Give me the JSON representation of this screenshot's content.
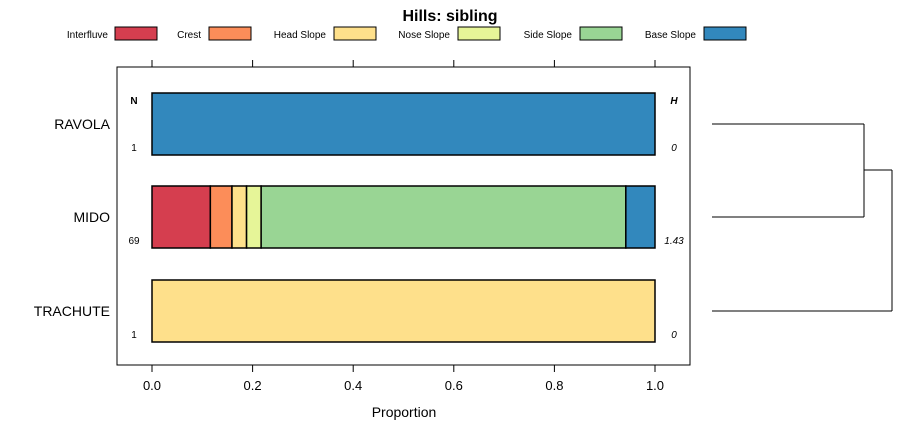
{
  "chart_data": {
    "type": "bar",
    "stacked": true,
    "orientation": "horizontal",
    "title": "Hills: sibling",
    "xlabel": "Proportion",
    "ylabel": "",
    "xlim": [
      0,
      1
    ],
    "xticks": [
      "0.0",
      "0.2",
      "0.4",
      "0.6",
      "0.8",
      "1.0"
    ],
    "xtick_values": [
      0,
      0.2,
      0.4,
      0.6,
      0.8,
      1.0
    ],
    "legend_position": "top",
    "n_header": "N",
    "h_header": "H",
    "categories": [
      "RAVOLA",
      "MIDO",
      "TRACHUTE"
    ],
    "n_values": [
      "1",
      "69",
      "1"
    ],
    "h_values": [
      "0",
      "1.43",
      "0"
    ],
    "series": [
      {
        "name": "Interfluve",
        "color": "#D53E4F",
        "values": [
          0,
          0.116,
          0
        ]
      },
      {
        "name": "Crest",
        "color": "#FC8D59",
        "values": [
          0,
          0.043,
          0
        ]
      },
      {
        "name": "Head Slope",
        "color": "#FEE08B",
        "values": [
          0,
          0.029,
          1
        ]
      },
      {
        "name": "Nose Slope",
        "color": "#E6F598",
        "values": [
          0,
          0.029,
          0
        ]
      },
      {
        "name": "Side Slope",
        "color": "#99D594",
        "values": [
          0,
          0.725,
          0
        ]
      },
      {
        "name": "Base Slope",
        "color": "#3288BD",
        "values": [
          1,
          0.058,
          0
        ]
      }
    ],
    "dendrogram": "RAVOLA and MIDO join first; TRACHUTE joins last"
  }
}
